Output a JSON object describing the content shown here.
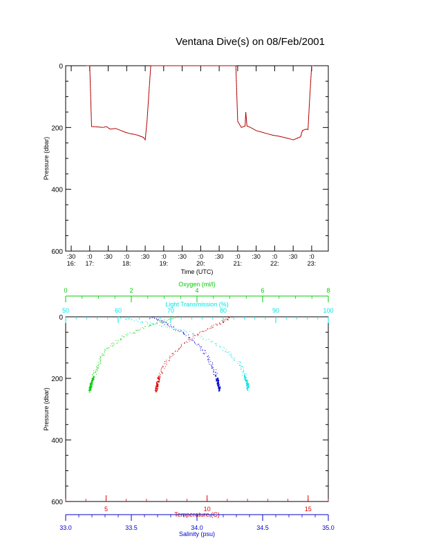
{
  "title": "Ventana Dive(s) on 08/Feb/2001",
  "colors": {
    "axis": "#000000",
    "time_series": "#cc0000",
    "oxygen": "#00cc00",
    "transmission": "#00e5e5",
    "temperature": "#dd0000",
    "salinity": "#0000cc"
  },
  "chart_data": [
    {
      "type": "line",
      "xlabel": "Time (UTC)",
      "ylabel": "Pressure (dbar)",
      "ylim": [
        600,
        0
      ],
      "y_ticks": [
        "0",
        "200",
        "400",
        "600"
      ],
      "x_ticks": [
        {
          "top": ":30",
          "bottom": "16:",
          "t": 16.5
        },
        {
          "top": ":0",
          "bottom": "17:",
          "t": 17.0
        },
        {
          "top": ":30",
          "bottom": "",
          "t": 17.5
        },
        {
          "top": ":0",
          "bottom": "18:",
          "t": 18.0
        },
        {
          "top": ":30",
          "bottom": "",
          "t": 18.5
        },
        {
          "top": ":0",
          "bottom": "19:",
          "t": 19.0
        },
        {
          "top": ":30",
          "bottom": "",
          "t": 19.5
        },
        {
          "top": ":0",
          "bottom": "20:",
          "t": 20.0
        },
        {
          "top": ":30",
          "bottom": "",
          "t": 20.5
        },
        {
          "top": ":0",
          "bottom": "21:",
          "t": 21.0
        },
        {
          "top": ":30",
          "bottom": "",
          "t": 21.5
        },
        {
          "top": ":0",
          "bottom": "22:",
          "t": 22.0
        },
        {
          "top": ":30",
          "bottom": "",
          "t": 22.5
        },
        {
          "top": ":0",
          "bottom": "23:",
          "t": 23.0
        }
      ],
      "xlim": [
        16.35,
        23.45
      ],
      "series": [
        {
          "name": "",
          "t": [
            16.9,
            17.0,
            17.05,
            17.2,
            17.35,
            17.45,
            17.55,
            17.7,
            17.85,
            17.95,
            18.1,
            18.2,
            18.3,
            18.45,
            18.5,
            18.55,
            18.65,
            19.5,
            20.3,
            20.6,
            20.95,
            21.0,
            21.1,
            21.2,
            21.22,
            21.25,
            21.35,
            21.5,
            21.65,
            21.8,
            21.95,
            22.1,
            22.25,
            22.35,
            22.45,
            22.5,
            22.6,
            22.7,
            22.75,
            22.85,
            22.9,
            22.95,
            23.0,
            23.05
          ],
          "p": [
            0,
            0,
            197,
            198,
            200,
            197,
            205,
            203,
            210,
            215,
            220,
            222,
            225,
            232,
            240,
            180,
            0,
            0,
            0,
            0,
            0,
            180,
            200,
            195,
            150,
            195,
            200,
            210,
            215,
            220,
            225,
            228,
            232,
            235,
            238,
            240,
            235,
            230,
            210,
            205,
            207,
            100,
            0,
            0
          ]
        }
      ]
    },
    {
      "type": "scatter",
      "ylabel": "Pressure (dbar)",
      "ylim": [
        600,
        0
      ],
      "y_ticks": [
        "0",
        "200",
        "400",
        "600"
      ],
      "axes": [
        {
          "position": "bottom",
          "label": "Temperature (C)",
          "range": [
            3,
            16
          ],
          "ticks": [
            "5",
            "10",
            "15"
          ],
          "tick_values": [
            5,
            10,
            15
          ]
        },
        {
          "position": "bottom-2",
          "label": "Salinity (psu)",
          "range": [
            33.0,
            35.0
          ],
          "ticks": [
            "33.0",
            "33.5",
            "34.0",
            "34.5",
            "35.0"
          ],
          "tick_values": [
            33.0,
            33.5,
            34.0,
            34.5,
            35.0
          ]
        },
        {
          "position": "top",
          "label": "Oxygen (ml/l)",
          "range": [
            0,
            8
          ],
          "ticks": [
            "0",
            "2",
            "4",
            "6",
            "8"
          ],
          "tick_values": [
            0,
            2,
            4,
            6,
            8
          ]
        },
        {
          "position": "top-2",
          "label": "Light Transmission (%)",
          "range": [
            50,
            100
          ],
          "ticks": [
            "50",
            "60",
            "70",
            "80",
            "90",
            "100"
          ],
          "tick_values": [
            50,
            60,
            70,
            80,
            90,
            100
          ]
        }
      ],
      "series": [
        {
          "name": "",
          "axis": "Oxygen (ml/l)",
          "x": [
            3.4,
            2.6,
            1.8,
            1.2,
            0.95,
            0.82,
            0.75,
            0.72
          ],
          "p": [
            0,
            25,
            60,
            110,
            160,
            200,
            220,
            240
          ]
        },
        {
          "name": "",
          "axis": "Light Transmission (%)",
          "x": [
            59.5,
            66,
            74,
            80,
            83,
            84,
            84.5,
            84.6
          ],
          "p": [
            0,
            20,
            50,
            100,
            150,
            190,
            215,
            235
          ]
        },
        {
          "name": "",
          "axis": "Temperature (C)",
          "x": [
            11.2,
            10.6,
            9.5,
            8.6,
            7.9,
            7.6,
            7.5,
            7.45
          ],
          "p": [
            0,
            20,
            55,
            100,
            150,
            195,
            220,
            240
          ]
        },
        {
          "name": "",
          "axis": "Salinity (psu)",
          "x": [
            33.65,
            33.78,
            33.92,
            34.05,
            34.12,
            34.15,
            34.16,
            34.17
          ],
          "p": [
            0,
            25,
            60,
            110,
            160,
            200,
            220,
            240
          ]
        }
      ]
    }
  ]
}
